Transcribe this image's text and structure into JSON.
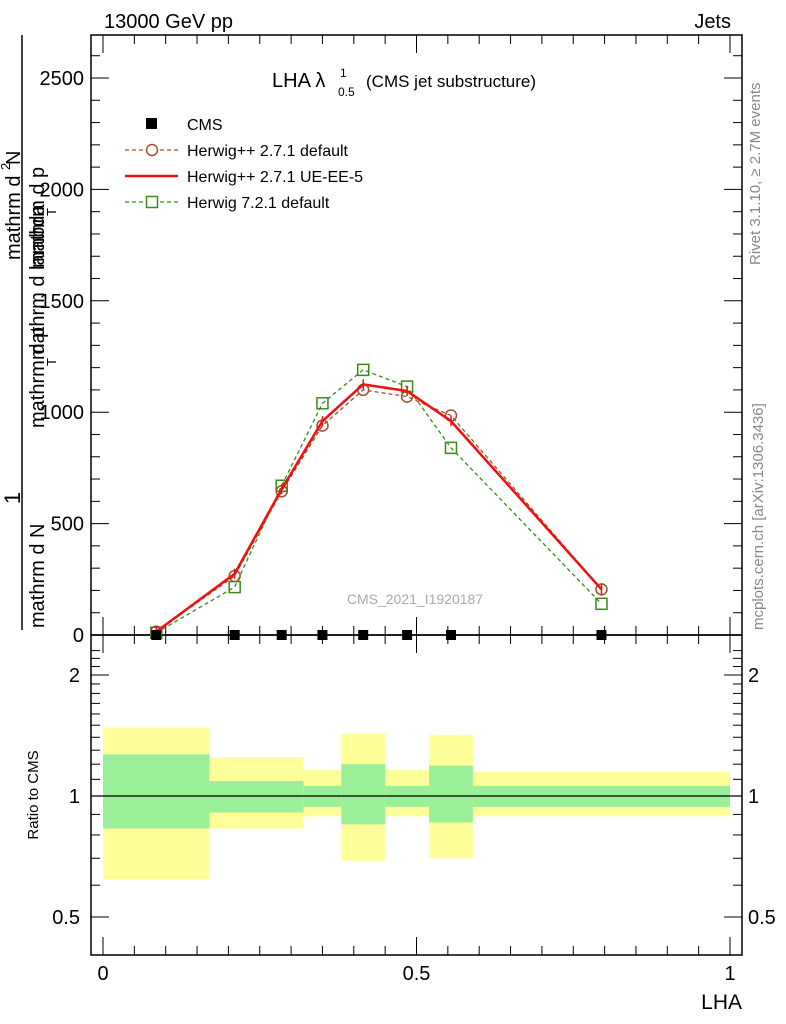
{
  "header": {
    "left": "13000 GeV pp",
    "right": "Jets"
  },
  "side_labels": {
    "rivet": "Rivet 3.1.10, ≥ 2.7M events",
    "mcplots": "mcplots.cern.ch [arXiv:1306.3436]"
  },
  "title": {
    "main": "LHA λ",
    "sup": "1",
    "sub": "0.5",
    "suffix": "(CMS jet substructure)"
  },
  "watermark": "CMS_2021_I1920187",
  "ylabel_top": {
    "numerator": "1",
    "frac1_num": "mathrm d N",
    "frac1_den": "mathrm d p",
    "frac1_den_sub": "T",
    "frac2_num": "mathrm d",
    "frac2_num_sup": "2",
    "frac2_num_rest": "N",
    "frac2_den": "mathrm d p",
    "frac2_den_sub": "T",
    "frac2_den_rest": "mathrm d lambda"
  },
  "ylabel_bottom": "Ratio to CMS",
  "xlabel": "LHA",
  "legend": [
    {
      "label": "CMS",
      "color": "#000000",
      "marker": "square-filled"
    },
    {
      "label": "Herwig++ 2.7.1 default",
      "color": "#a0522d",
      "marker": "circle-open",
      "dash": true
    },
    {
      "label": "Herwig++ 2.7.1 UE-EE-5",
      "color": "#ee1111",
      "marker": "none",
      "dash": false
    },
    {
      "label": "Herwig 7.2.1 default",
      "color": "#3a8a1a",
      "marker": "square-open",
      "dash": true
    }
  ],
  "chart_data": [
    {
      "type": "line",
      "panel": "main",
      "xlim": [
        0,
        1
      ],
      "ylim": [
        0,
        2700
      ],
      "yticks": [
        0,
        500,
        1000,
        1500,
        2000,
        2500
      ],
      "ytick_labels": [
        "0",
        "500",
        "1000",
        "1500",
        "2000",
        "2500"
      ],
      "series": [
        {
          "name": "CMS",
          "x": [
            0.085,
            0.21,
            0.285,
            0.35,
            0.415,
            0.485,
            0.555,
            0.795
          ],
          "y": [
            0,
            0,
            0,
            0,
            0,
            0,
            0,
            0
          ]
        },
        {
          "name": "Herwig++ 2.7.1 default",
          "x": [
            0.085,
            0.21,
            0.285,
            0.35,
            0.415,
            0.485,
            0.555,
            0.795
          ],
          "y": [
            15,
            265,
            645,
            940,
            1100,
            1070,
            985,
            205
          ]
        },
        {
          "name": "Herwig++ 2.7.1 UE-EE-5",
          "x": [
            0.085,
            0.21,
            0.285,
            0.35,
            0.415,
            0.485,
            0.555,
            0.795
          ],
          "y": [
            15,
            275,
            655,
            960,
            1125,
            1095,
            960,
            205
          ]
        },
        {
          "name": "Herwig 7.2.1 default",
          "x": [
            0.085,
            0.21,
            0.285,
            0.35,
            0.415,
            0.485,
            0.555,
            0.795
          ],
          "y": [
            10,
            215,
            670,
            1040,
            1190,
            1115,
            840,
            140
          ]
        }
      ]
    },
    {
      "type": "area",
      "panel": "ratio",
      "xlim": [
        0,
        1
      ],
      "ylim": [
        0.4,
        2.4
      ],
      "yticks": [
        0.5,
        1,
        2
      ],
      "ytick_labels": [
        "0.5",
        "1",
        "2"
      ],
      "xticks": [
        0,
        0.5,
        1
      ],
      "xtick_labels": [
        "0",
        "0.5",
        "1"
      ],
      "bins": [
        [
          0,
          0.17
        ],
        [
          0.17,
          0.32
        ],
        [
          0.32,
          0.38
        ],
        [
          0.38,
          0.45
        ],
        [
          0.45,
          0.52
        ],
        [
          0.52,
          0.59
        ],
        [
          0.59,
          1
        ]
      ],
      "band_inner": [
        [
          0.83,
          1.27
        ],
        [
          0.91,
          1.09
        ],
        [
          0.94,
          1.06
        ],
        [
          0.85,
          1.2
        ],
        [
          0.94,
          1.06
        ],
        [
          0.86,
          1.19
        ],
        [
          0.94,
          1.06
        ]
      ],
      "band_outer": [
        [
          0.62,
          1.48
        ],
        [
          0.83,
          1.25
        ],
        [
          0.89,
          1.16
        ],
        [
          0.69,
          1.43
        ],
        [
          0.89,
          1.16
        ],
        [
          0.7,
          1.42
        ],
        [
          0.89,
          1.15
        ]
      ]
    }
  ]
}
